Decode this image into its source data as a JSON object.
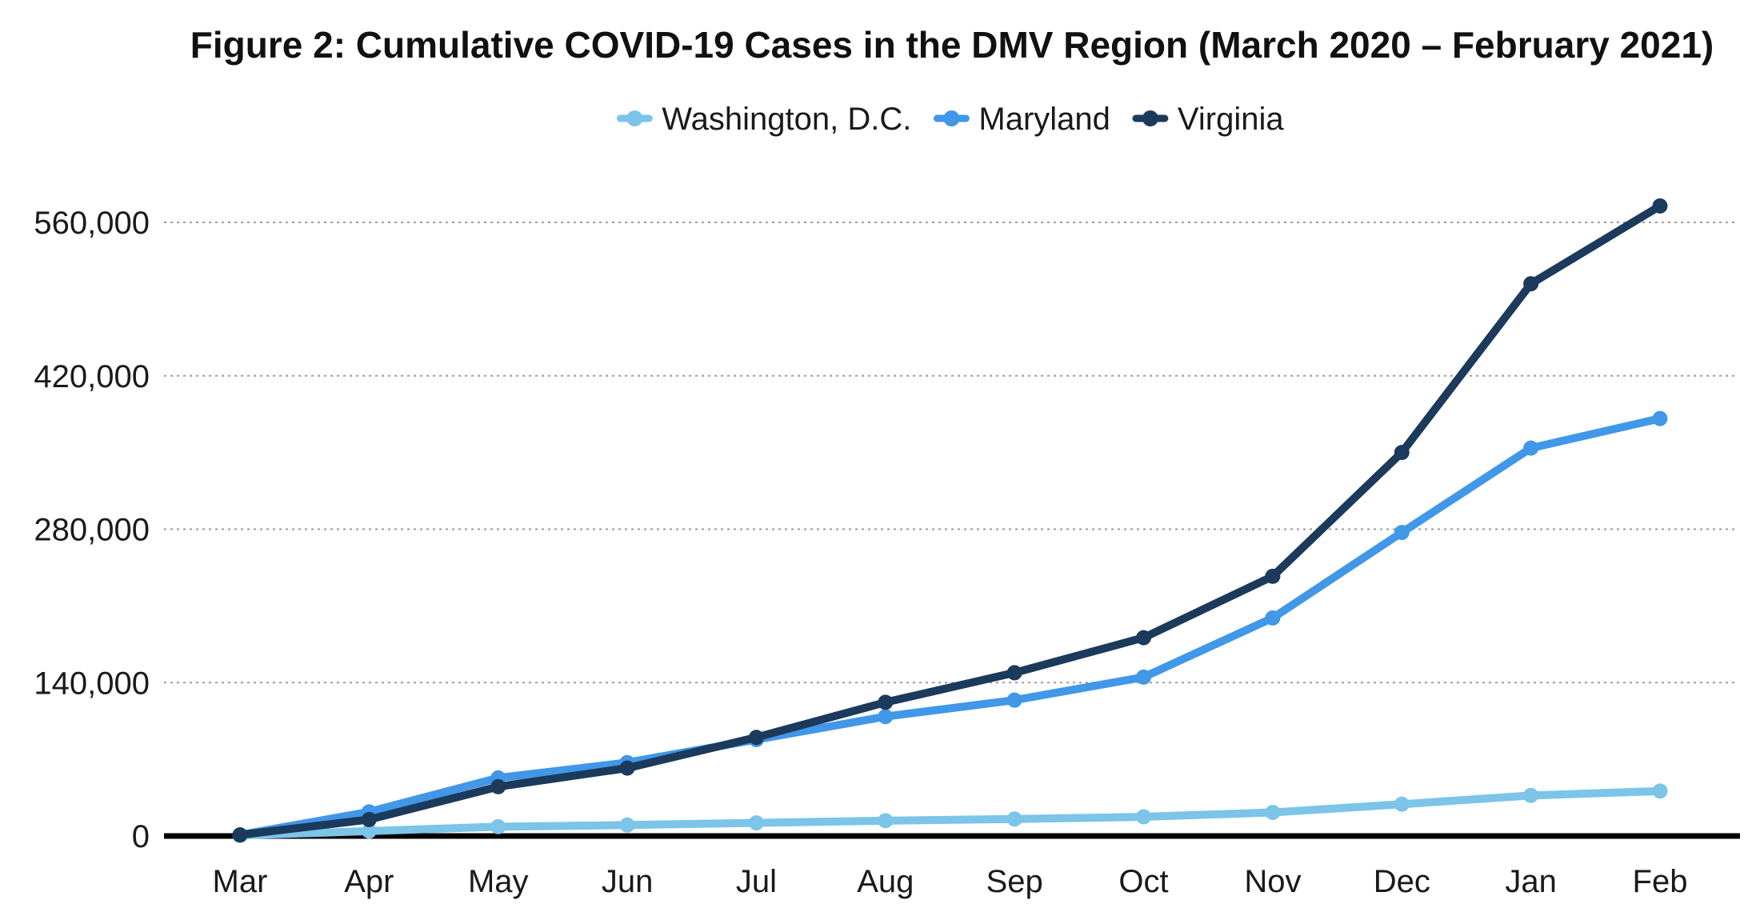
{
  "chart_data": {
    "type": "line",
    "title": "Figure 2: Cumulative COVID-19 Cases in the DMV Region (March 2020 – February 2021)",
    "xlabel": "",
    "ylabel": "",
    "categories": [
      "Mar",
      "Apr",
      "May",
      "Jun",
      "Jul",
      "Aug",
      "Sep",
      "Oct",
      "Nov",
      "Dec",
      "Jan",
      "Feb"
    ],
    "ylim": [
      0,
      560000
    ],
    "yticks": [
      0,
      140000,
      280000,
      420000,
      560000
    ],
    "ytick_labels": [
      "0",
      "140,000",
      "280,000",
      "420,000",
      "560,000"
    ],
    "grid": "horizontal dotted",
    "legend_position": "top-center",
    "series": [
      {
        "name": "Washington, D.C.",
        "color": "#7cc4e8",
        "values": [
          500,
          4500,
          8500,
          10000,
          12000,
          14000,
          15500,
          17500,
          21500,
          29000,
          37000,
          41000
        ]
      },
      {
        "name": "Maryland",
        "color": "#4197e8",
        "values": [
          1000,
          22000,
          53000,
          67000,
          88000,
          109000,
          124000,
          145000,
          199000,
          277000,
          354000,
          381000
        ]
      },
      {
        "name": "Virginia",
        "color": "#1b3a5c",
        "values": [
          1000,
          15000,
          45000,
          62000,
          90000,
          122000,
          149000,
          181000,
          237000,
          350000,
          504000,
          575000
        ]
      }
    ]
  }
}
